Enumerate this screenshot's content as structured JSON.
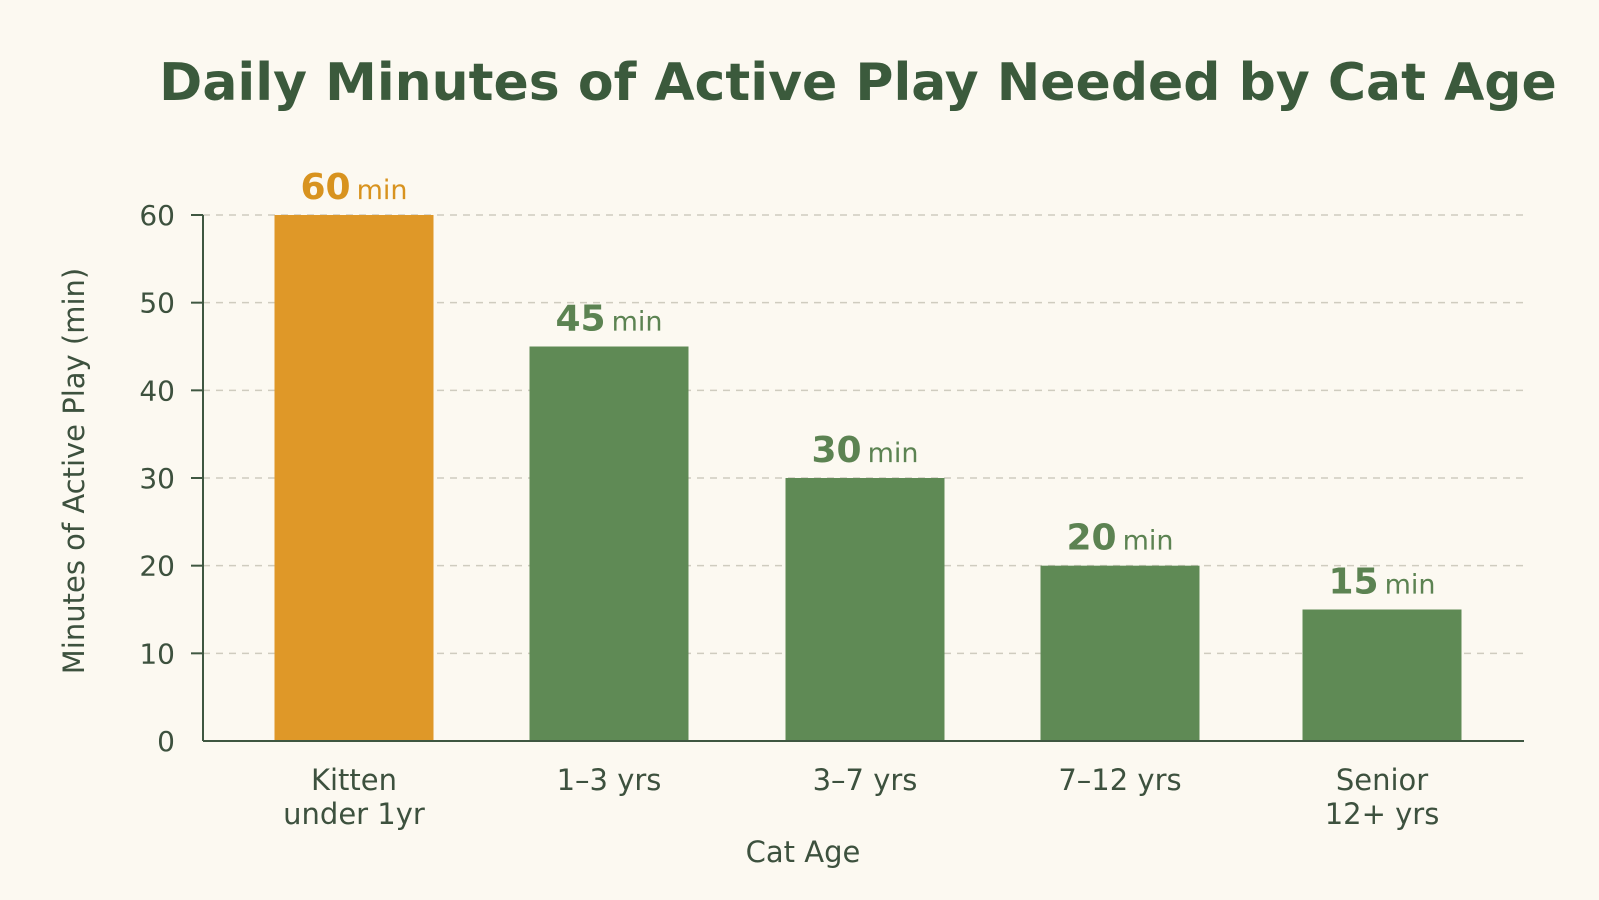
{
  "chart_data": {
    "type": "bar",
    "title": "Daily Minutes of Active Play Needed by Cat Age",
    "xlabel": "Cat Age",
    "ylabel": "Minutes of Active Play (min)",
    "categories": [
      [
        "Kitten",
        "under 1yr"
      ],
      [
        "1–3 yrs"
      ],
      [
        "3–7 yrs"
      ],
      [
        "7–12 yrs"
      ],
      [
        "Senior",
        "12+ yrs"
      ]
    ],
    "values": [
      60,
      45,
      30,
      20,
      15
    ],
    "value_unit": "min",
    "ylim": [
      0,
      60
    ],
    "yticks": [
      0,
      10,
      20,
      30,
      40,
      50,
      60
    ],
    "grid": true,
    "colors": {
      "highlight": "#df9828",
      "bar": "#5f8a55",
      "highlight_label": "#d8931f",
      "bar_label": "#5c8352",
      "axis": "#3f5741",
      "grid": "#cfccbf"
    },
    "highlight_index": 0
  }
}
